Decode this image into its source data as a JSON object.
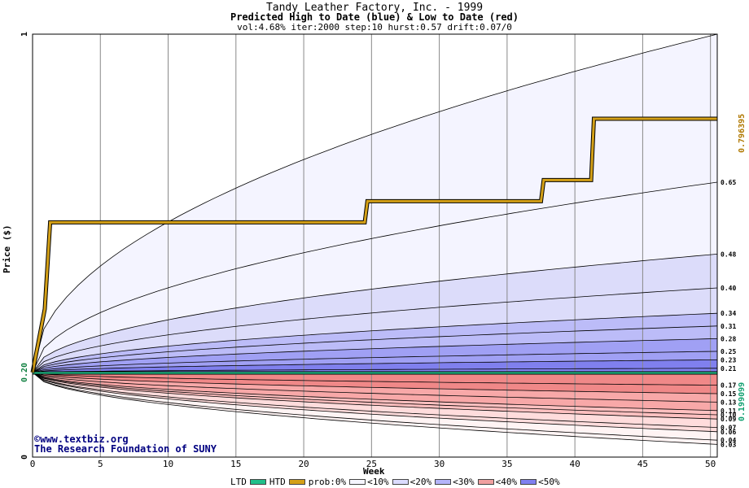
{
  "header": {
    "title": "Tandy Leather Factory, Inc. - 1999",
    "subtitle": "Predicted High to Date (blue) &  Low to Date (red)",
    "params": "vol:4.68% iter:2000 step:10 hurst:0.57 drift:0.07/0"
  },
  "credits": {
    "line1": "©www.textbiz.org",
    "line2": "The Research Foundation of SUNY"
  },
  "axes": {
    "xlabel": "Week",
    "ylabel": "Price ($)"
  },
  "right_labels": {
    "high": "0.796395",
    "low": "0.199099"
  },
  "legend": {
    "ltd": "LTD",
    "htd": "HTD",
    "prob_prefix": "prob:0%",
    "items": [
      {
        "label": "<10%",
        "color": "#f5f5ff"
      },
      {
        "label": "<20%",
        "color": "#dcdcff"
      },
      {
        "label": "<30%",
        "color": "#b4b4fa"
      },
      {
        "label": "<40%",
        "color": "#f0a0a0"
      },
      {
        "label": "<50%",
        "color": "#8080f0"
      }
    ]
  },
  "colors": {
    "htd": "#d4a017",
    "ltd": "#20c08a",
    "grid": "#888888",
    "blue_bands": [
      "#f4f4ff",
      "#dcdcfa",
      "#bcbcf8",
      "#a0a0f4",
      "#8080ee"
    ],
    "red_bands": [
      "#fff4f4",
      "#ffdcdc",
      "#ffc0c0",
      "#f8a8a8",
      "#f08888"
    ]
  },
  "chart_data": {
    "type": "area",
    "xlim": [
      0,
      50.5
    ],
    "ylim": [
      0,
      1
    ],
    "x_ticks": [
      0,
      5,
      10,
      15,
      20,
      25,
      30,
      35,
      40,
      45,
      50
    ],
    "y_ticks": [
      {
        "value": 0,
        "label": "0"
      },
      {
        "value": 0.2,
        "label": "0.20"
      },
      {
        "value": 1,
        "label": "1"
      }
    ],
    "grid": true,
    "start_price": 0.2,
    "high_quantiles": [
      {
        "end": 1.0,
        "label": ""
      },
      {
        "end": 0.65,
        "label": "0.65"
      },
      {
        "end": 0.48,
        "label": "0.48"
      },
      {
        "end": 0.4,
        "label": "0.40"
      },
      {
        "end": 0.34,
        "label": "0.34"
      },
      {
        "end": 0.31,
        "label": "0.31"
      },
      {
        "end": 0.28,
        "label": "0.28"
      },
      {
        "end": 0.25,
        "label": "0.25"
      },
      {
        "end": 0.23,
        "label": "0.23"
      },
      {
        "end": 0.21,
        "label": "0.21"
      }
    ],
    "low_quantiles": [
      {
        "end": 0.17,
        "label": "0.17"
      },
      {
        "end": 0.15,
        "label": "0.15"
      },
      {
        "end": 0.13,
        "label": "0.13"
      },
      {
        "end": 0.11,
        "label": "0.11"
      },
      {
        "end": 0.1,
        "label": "0.10"
      },
      {
        "end": 0.09,
        "label": "0.09"
      },
      {
        "end": 0.07,
        "label": "0.07"
      },
      {
        "end": 0.06,
        "label": "0.06"
      },
      {
        "end": 0.04,
        "label": "0.04"
      },
      {
        "end": 0.03,
        "label": "0.03"
      }
    ],
    "htd_series": {
      "name": "HTD",
      "x": [
        0,
        0.9,
        1.3,
        24.5,
        24.7,
        37.5,
        37.7,
        41.2,
        41.4,
        50.5
      ],
      "y": [
        0.2,
        0.35,
        0.555,
        0.555,
        0.605,
        0.605,
        0.655,
        0.655,
        0.8,
        0.8
      ]
    },
    "ltd_series": {
      "name": "LTD",
      "x": [
        0,
        50.5
      ],
      "y": [
        0.199,
        0.199
      ]
    }
  }
}
